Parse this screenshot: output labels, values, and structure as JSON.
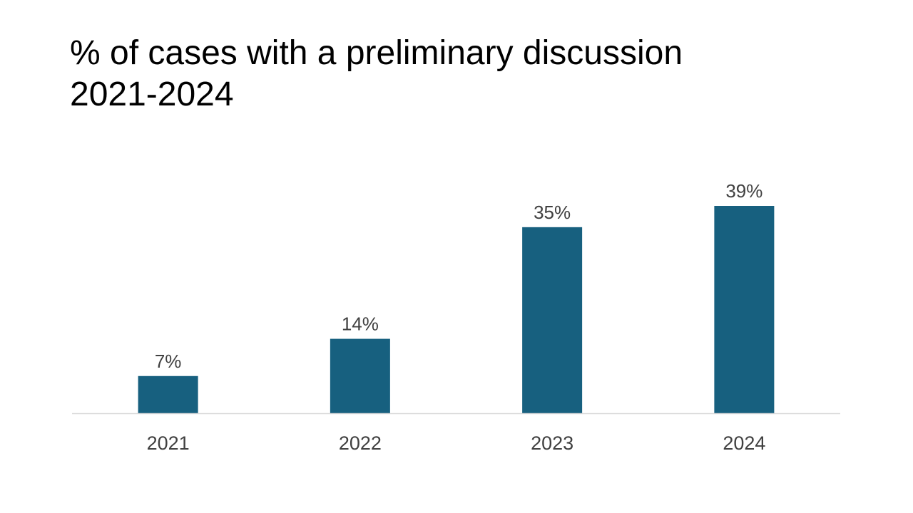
{
  "chart_data": {
    "type": "bar",
    "title_line1": "% of cases with a preliminary discussion",
    "title_line2": "2021-2024",
    "categories": [
      "2021",
      "2022",
      "2023",
      "2024"
    ],
    "values": [
      7,
      14,
      35,
      39
    ],
    "data_labels": [
      "7%",
      "14%",
      "35%",
      "39%"
    ],
    "xlabel": "",
    "ylabel": "",
    "ylim": [
      0,
      39
    ],
    "grid": false,
    "legend": "none",
    "bar_color": "#17607f",
    "axis_color": "#d9d9d9"
  }
}
